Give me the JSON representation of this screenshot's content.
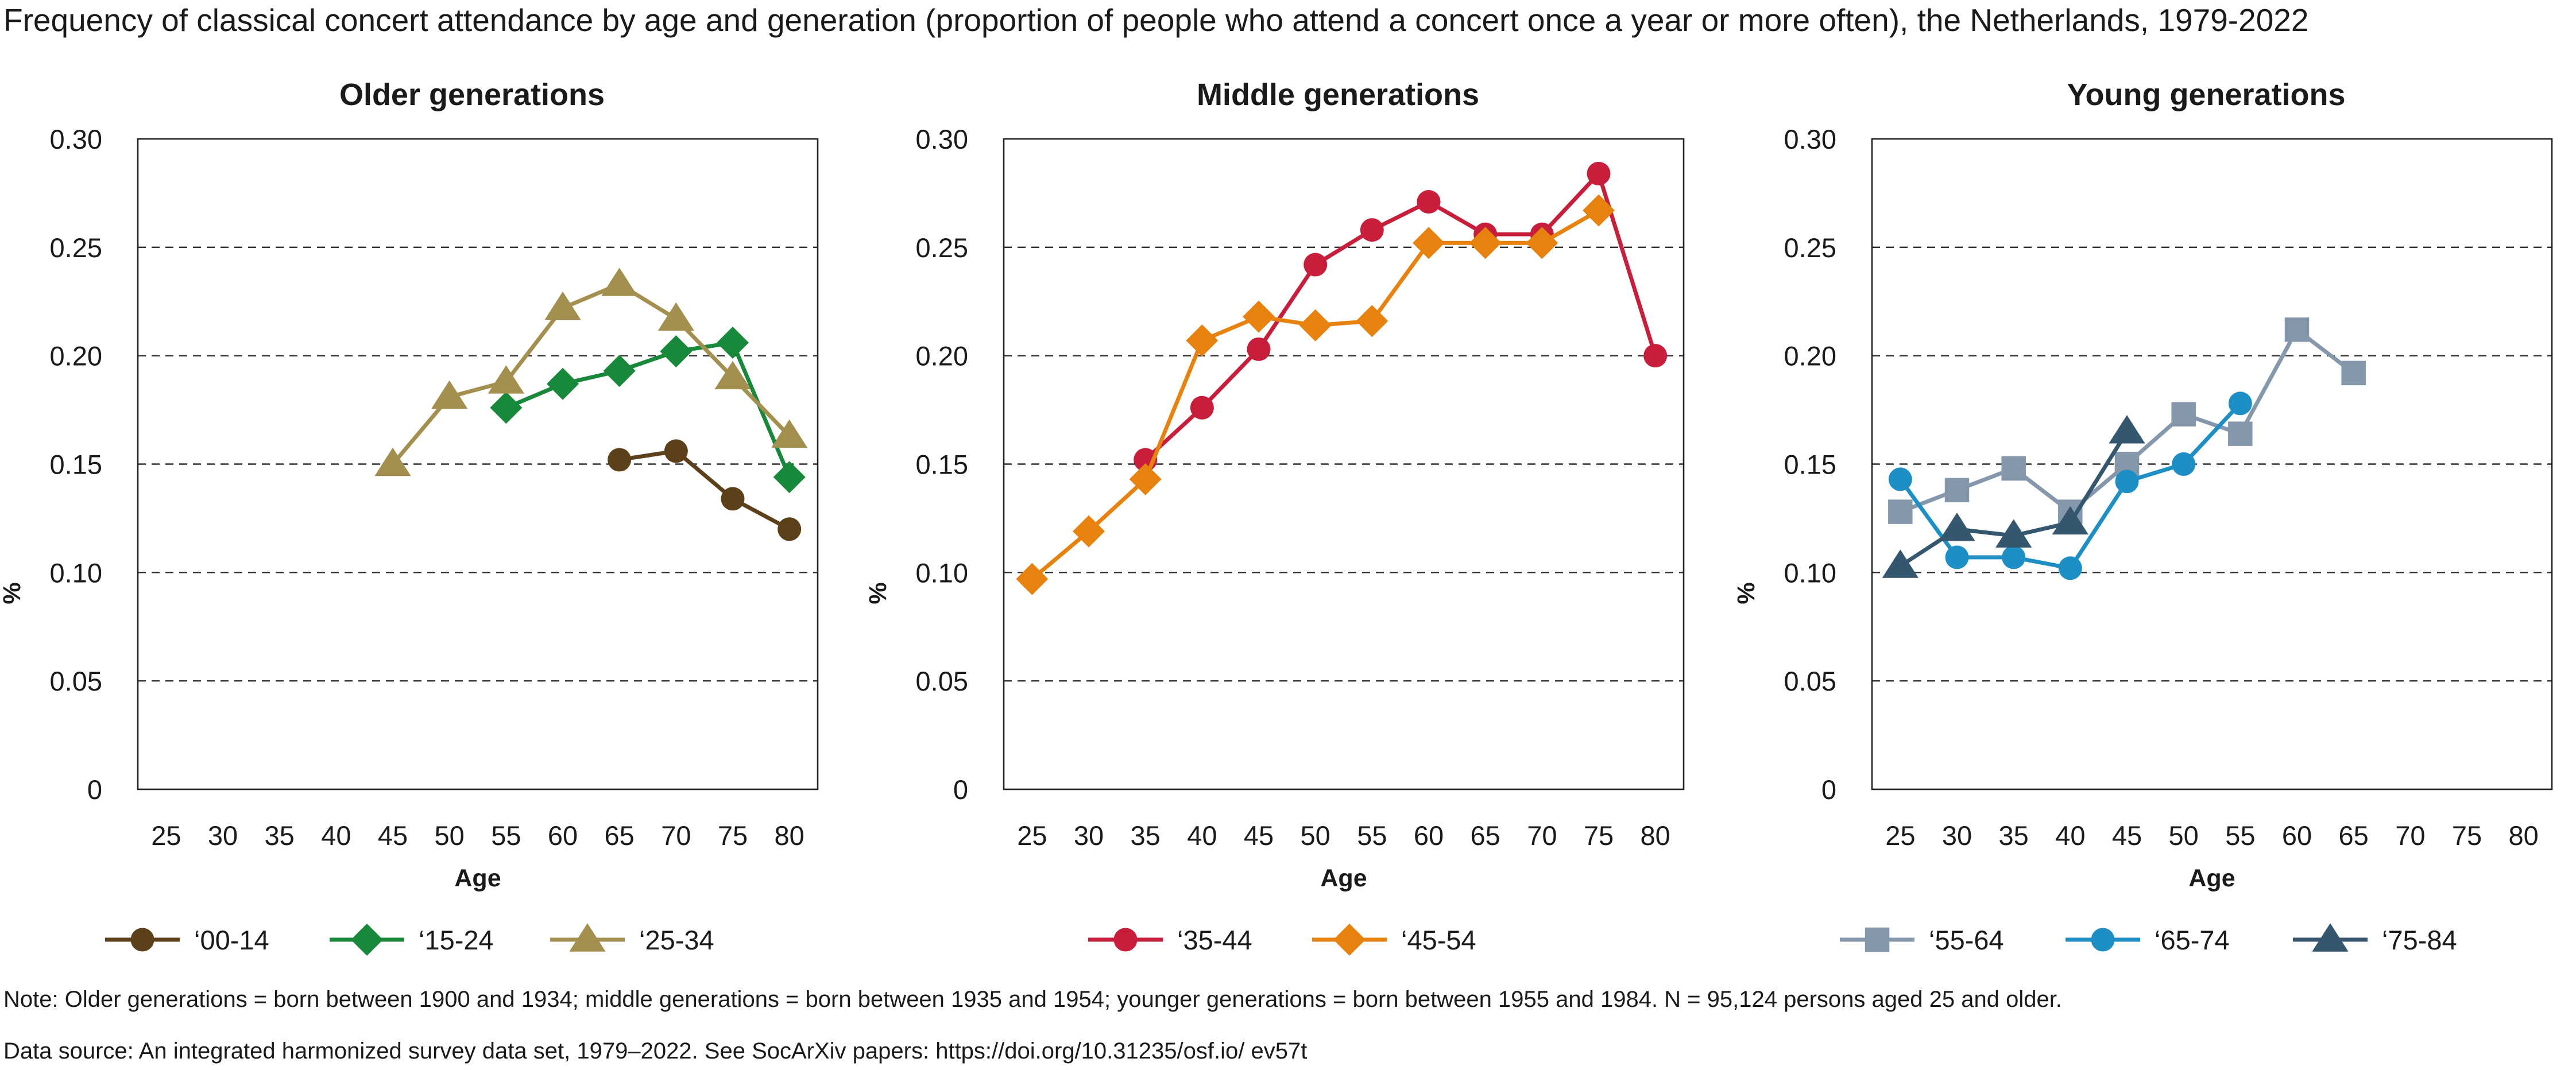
{
  "title": "Frequency of classical concert attendance by age and generation (proportion of people who attend a concert once a year or more often), the Netherlands, 1979-2022",
  "note": "Note: Older generations = born between 1900 and 1934; middle generations = born between 1935 and 1954; younger generations = born between 1955 and 1984. N = 95,124 persons aged 25 and older.",
  "source": "Data source: An integrated harmonized survey data set, 1979–2022. See SocArXiv papers: https://doi.org/10.31235/osf.io/ ev57t",
  "chart_data": [
    {
      "type": "line",
      "title": "Older generations",
      "xlabel": "Age",
      "ylabel": "%",
      "x": [
        25,
        30,
        35,
        40,
        45,
        50,
        55,
        60,
        65,
        70,
        75,
        80
      ],
      "ylim": [
        0,
        0.3
      ],
      "yticks": [
        "0",
        "0.05",
        "0.10",
        "0.15",
        "0.20",
        "0.25",
        "0.30"
      ],
      "grid": "horizontal dashed",
      "legend_position": "bottom",
      "series": [
        {
          "name": "‘00-14",
          "color": "#5c4019",
          "marker": "circle",
          "points": [
            [
              65,
              0.152
            ],
            [
              70,
              0.156
            ],
            [
              75,
              0.134
            ],
            [
              80,
              0.12
            ]
          ]
        },
        {
          "name": "‘15-24",
          "color": "#18883a",
          "marker": "diamond",
          "points": [
            [
              55,
              0.176
            ],
            [
              60,
              0.187
            ],
            [
              65,
              0.193
            ],
            [
              70,
              0.202
            ],
            [
              75,
              0.206
            ],
            [
              80,
              0.144
            ]
          ]
        },
        {
          "name": "‘25-34",
          "color": "#a38f4e",
          "marker": "triangle",
          "points": [
            [
              45,
              0.15
            ],
            [
              50,
              0.181
            ],
            [
              55,
              0.188
            ],
            [
              60,
              0.222
            ],
            [
              65,
              0.233
            ],
            [
              70,
              0.217
            ],
            [
              75,
              0.19
            ],
            [
              80,
              0.163
            ]
          ]
        }
      ]
    },
    {
      "type": "line",
      "title": "Middle generations",
      "xlabel": "Age",
      "ylabel": "%",
      "x": [
        25,
        30,
        35,
        40,
        45,
        50,
        55,
        60,
        65,
        70,
        75,
        80
      ],
      "ylim": [
        0,
        0.3
      ],
      "yticks": [
        "0",
        "0.05",
        "0.10",
        "0.15",
        "0.20",
        "0.25",
        "0.30"
      ],
      "grid": "horizontal dashed",
      "legend_position": "bottom",
      "series": [
        {
          "name": "‘35-44",
          "color": "#c81e3c",
          "marker": "circle",
          "points": [
            [
              35,
              0.152
            ],
            [
              40,
              0.176
            ],
            [
              45,
              0.203
            ],
            [
              50,
              0.242
            ],
            [
              55,
              0.258
            ],
            [
              60,
              0.271
            ],
            [
              65,
              0.256
            ],
            [
              70,
              0.256
            ],
            [
              75,
              0.284
            ],
            [
              80,
              0.2
            ]
          ]
        },
        {
          "name": "‘45-54",
          "color": "#e8820e",
          "marker": "diamond",
          "points": [
            [
              25,
              0.097
            ],
            [
              30,
              0.119
            ],
            [
              35,
              0.143
            ],
            [
              40,
              0.207
            ],
            [
              45,
              0.218
            ],
            [
              50,
              0.214
            ],
            [
              55,
              0.216
            ],
            [
              60,
              0.252
            ],
            [
              65,
              0.252
            ],
            [
              70,
              0.252
            ],
            [
              75,
              0.267
            ]
          ]
        }
      ]
    },
    {
      "type": "line",
      "title": "Young generations",
      "xlabel": "Age",
      "ylabel": "%",
      "x": [
        25,
        30,
        35,
        40,
        45,
        50,
        55,
        60,
        65,
        70,
        75,
        80
      ],
      "ylim": [
        0,
        0.3
      ],
      "yticks": [
        "0",
        "0.05",
        "0.10",
        "0.15",
        "0.20",
        "0.25",
        "0.30"
      ],
      "grid": "horizontal dashed",
      "legend_position": "bottom",
      "series": [
        {
          "name": "‘55-64",
          "color": "#8497ab",
          "marker": "square",
          "points": [
            [
              25,
              0.128
            ],
            [
              30,
              0.138
            ],
            [
              35,
              0.148
            ],
            [
              40,
              0.128
            ],
            [
              45,
              0.15
            ],
            [
              50,
              0.173
            ],
            [
              55,
              0.164
            ],
            [
              60,
              0.212
            ],
            [
              65,
              0.192
            ]
          ]
        },
        {
          "name": "‘65-74",
          "color": "#1e8fc4",
          "marker": "circle",
          "points": [
            [
              25,
              0.143
            ],
            [
              30,
              0.107
            ],
            [
              35,
              0.107
            ],
            [
              40,
              0.102
            ],
            [
              45,
              0.142
            ],
            [
              50,
              0.15
            ],
            [
              55,
              0.178
            ]
          ]
        },
        {
          "name": "‘75-84",
          "color": "#34576f",
          "marker": "triangle",
          "points": [
            [
              25,
              0.103
            ],
            [
              30,
              0.12
            ],
            [
              35,
              0.117
            ],
            [
              40,
              0.123
            ],
            [
              45,
              0.165
            ]
          ]
        }
      ]
    }
  ]
}
